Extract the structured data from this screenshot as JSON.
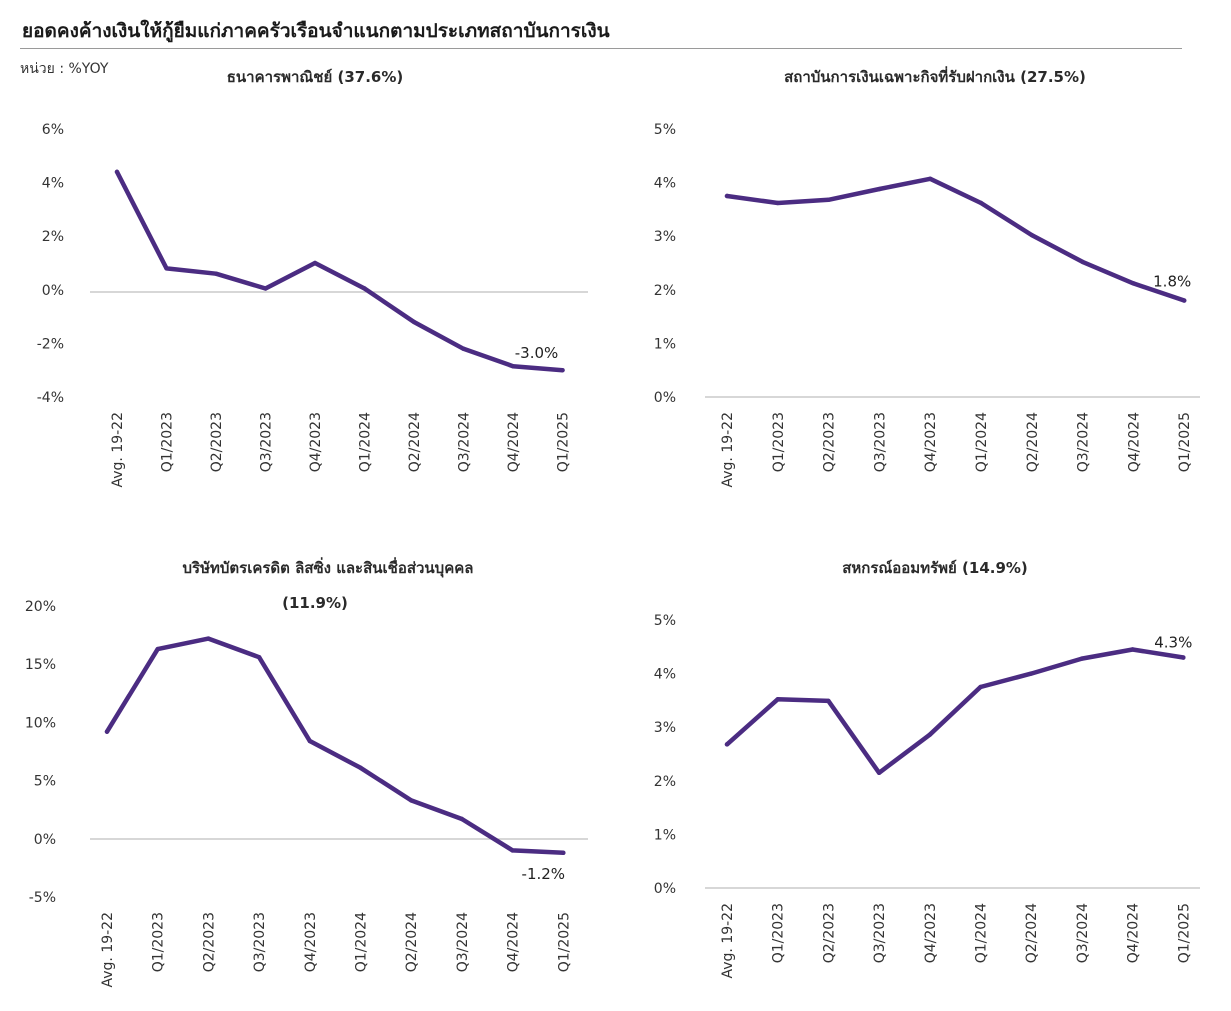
{
  "header": {
    "title": "ยอดคงค้างเงินให้กู้ยืมแก่ภาคครัวเรือนจำแนกตามประเภทสถาบันการเงิน",
    "unit": "หน่วย : %YOY"
  },
  "colors": {
    "line": "#4B2C82",
    "axis": "#bfbfbf",
    "rule": "#9a9a9a"
  },
  "chart_data": [
    {
      "type": "line",
      "title": "ธนาคารพาณิชย์ (37.6%)",
      "categories": [
        "Avg. 19-22",
        "Q1/2023",
        "Q2/2023",
        "Q3/2023",
        "Q4/2023",
        "Q1/2024",
        "Q2/2024",
        "Q3/2024",
        "Q4/2024",
        "Q1/2025"
      ],
      "series": [
        {
          "values": [
            4.4,
            0.8,
            0.6,
            0.05,
            1.0,
            0.05,
            -1.2,
            -2.2,
            -2.85,
            -3.0
          ]
        }
      ],
      "ylim": [
        -4,
        6
      ],
      "yticks": [
        "-4%",
        "-2%",
        "0%",
        "2%",
        "4%",
        "6%"
      ],
      "last_label": "-3.0%"
    },
    {
      "type": "line",
      "title": "สถาบันการเงินเฉพาะกิจที่รับฝากเงิน (27.5%)",
      "categories": [
        "Avg. 19-22",
        "Q1/2023",
        "Q2/2023",
        "Q3/2023",
        "Q4/2023",
        "Q1/2024",
        "Q2/2024",
        "Q3/2024",
        "Q4/2024",
        "Q1/2025"
      ],
      "series": [
        {
          "values": [
            3.75,
            3.62,
            3.68,
            3.88,
            4.07,
            3.62,
            3.02,
            2.52,
            2.12,
            1.8
          ]
        }
      ],
      "ylim": [
        0,
        5
      ],
      "yticks": [
        "0%",
        "1%",
        "2%",
        "3%",
        "4%",
        "5%"
      ],
      "last_label": "1.8%"
    },
    {
      "type": "line",
      "title": "บริษัทบัตรเครดิต ลิสซิ่ง และสินเชื่อส่วนบุคคล",
      "title2": "(11.9%)",
      "categories": [
        "Avg. 19-22",
        "Q1/2023",
        "Q2/2023",
        "Q3/2023",
        "Q4/2023",
        "Q1/2024",
        "Q2/2024",
        "Q3/2024",
        "Q4/2024",
        "Q1/2025"
      ],
      "series": [
        {
          "values": [
            9.2,
            16.3,
            17.2,
            15.6,
            8.4,
            6.1,
            3.3,
            1.7,
            -1.0,
            -1.2
          ]
        }
      ],
      "ylim": [
        -5,
        20
      ],
      "yticks": [
        "-5%",
        "0%",
        "5%",
        "10%",
        "15%",
        "20%"
      ],
      "last_label": "-1.2%"
    },
    {
      "type": "line",
      "title": "สหกรณ์ออมทรัพย์ (14.9%)",
      "categories": [
        "Avg. 19-22",
        "Q1/2023",
        "Q2/2023",
        "Q3/2023",
        "Q4/2023",
        "Q1/2024",
        "Q2/2024",
        "Q3/2024",
        "Q4/2024",
        "Q1/2025"
      ],
      "series": [
        {
          "values": [
            2.68,
            3.52,
            3.49,
            2.15,
            2.86,
            3.75,
            4.0,
            4.28,
            4.45,
            4.3
          ]
        }
      ],
      "ylim": [
        0,
        5
      ],
      "yticks": [
        "0%",
        "1%",
        "2%",
        "3%",
        "4%",
        "5%"
      ],
      "last_label": "4.3%"
    }
  ]
}
